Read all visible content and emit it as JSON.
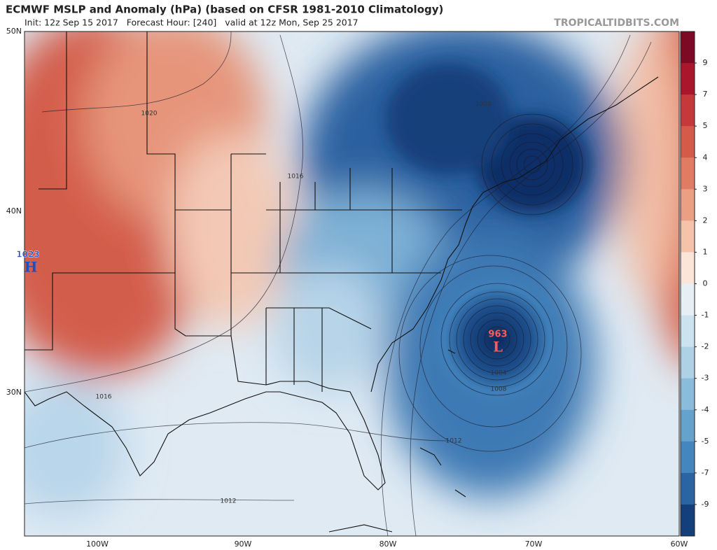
{
  "header": {
    "title": "ECMWF MSLP and Anomaly (hPa) (based on CFSR 1981-2010 Climatology)",
    "subtitle": "Init: 12z Sep 15 2017   Forecast Hour: [240]   valid at 12z Mon, Sep 25 2017",
    "credit": "TROPICALTIDBITS.COM"
  },
  "map": {
    "lat_labels": [
      "50N",
      "40N",
      "30N"
    ],
    "lon_labels": [
      "100W",
      "90W",
      "80W",
      "70W",
      "60W"
    ],
    "high": {
      "symbol": "H",
      "pressure": 1023
    },
    "low": {
      "symbol": "L",
      "pressure": 963
    },
    "contour_labels": [
      1020,
      1016,
      1008,
      1016,
      1012,
      1004,
      1008,
      1012
    ]
  },
  "colorbar": {
    "ticks": [
      9,
      7,
      5,
      4,
      3,
      2,
      1,
      0,
      -1,
      -2,
      -3,
      -4,
      -5,
      -7,
      -9
    ],
    "colors": [
      "#7d0a24",
      "#a8172b",
      "#c4393b",
      "#d45a4a",
      "#e07c64",
      "#eb9f85",
      "#f4c3aa",
      "#fbe4d8",
      "#e6eff6",
      "#cde2ef",
      "#aed1e6",
      "#8bbcdb",
      "#66a3cc",
      "#4486bd",
      "#2a64a3",
      "#143f7a"
    ]
  }
}
